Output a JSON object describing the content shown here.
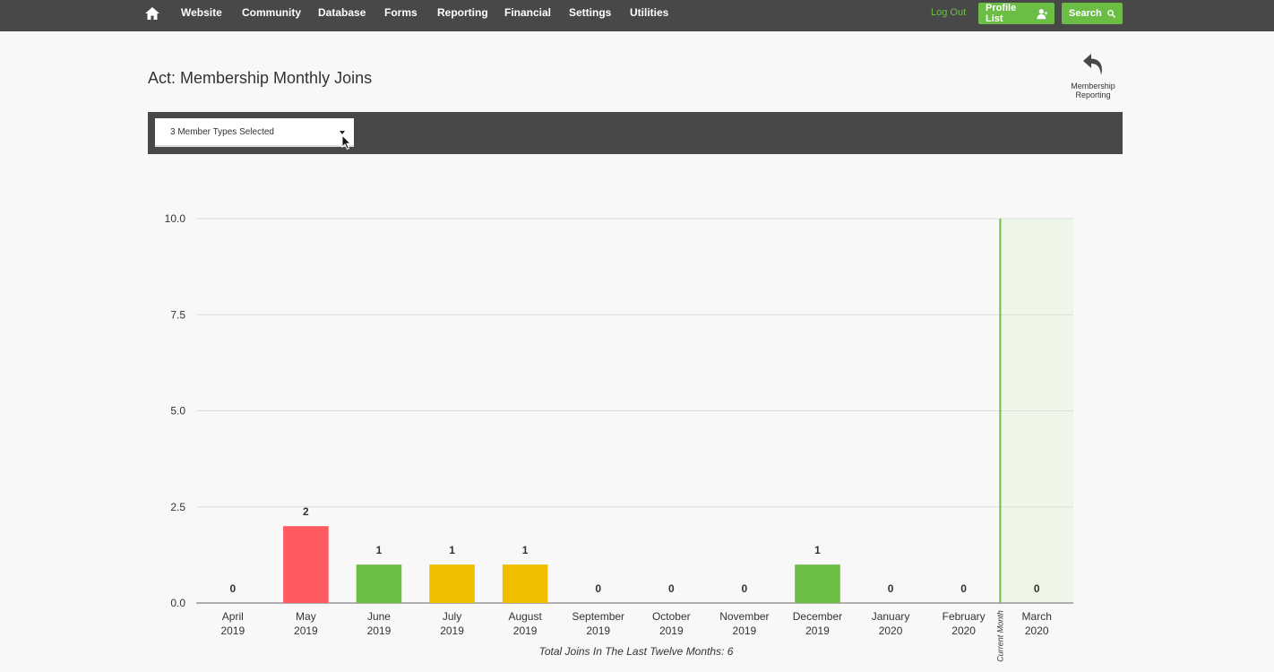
{
  "nav": {
    "items": [
      "Website",
      "Community",
      "Database",
      "Forms",
      "Reporting",
      "Financial",
      "Settings",
      "Utilities"
    ],
    "logout": "Log Out",
    "profile_list": "Profile List",
    "search": "Search"
  },
  "page": {
    "title": "Act: Membership Monthly Joins",
    "back_label": "Membership Reporting"
  },
  "filter": {
    "member_types": "3 Member Types Selected"
  },
  "chart_data": {
    "type": "bar",
    "categories": [
      [
        "April",
        "2019"
      ],
      [
        "May",
        "2019"
      ],
      [
        "June",
        "2019"
      ],
      [
        "July",
        "2019"
      ],
      [
        "August",
        "2019"
      ],
      [
        "September",
        "2019"
      ],
      [
        "October",
        "2019"
      ],
      [
        "November",
        "2019"
      ],
      [
        "December",
        "2019"
      ],
      [
        "January",
        "2020"
      ],
      [
        "February",
        "2020"
      ],
      [
        "March",
        "2020"
      ]
    ],
    "values": [
      0,
      2,
      1,
      1,
      1,
      0,
      0,
      0,
      1,
      0,
      0,
      0
    ],
    "bar_colors": [
      "#6cbd45",
      "#ff5a5f",
      "#6cbd45",
      "#f0c000",
      "#f0c000",
      "#6cbd45",
      "#6cbd45",
      "#6cbd45",
      "#6cbd45",
      "#6cbd45",
      "#6cbd45",
      "#6cbd45"
    ],
    "y_ticks": [
      "0.0",
      "2.5",
      "5.0",
      "7.5",
      "10.0"
    ],
    "ylim": [
      0,
      10
    ],
    "grid": true,
    "current_month_label": "Current Month",
    "current_month_index": 11,
    "current_month_band": "#eef6e7",
    "current_month_line": "#6cbd45",
    "footer": "Total Joins In The Last Twelve Months: 6"
  }
}
